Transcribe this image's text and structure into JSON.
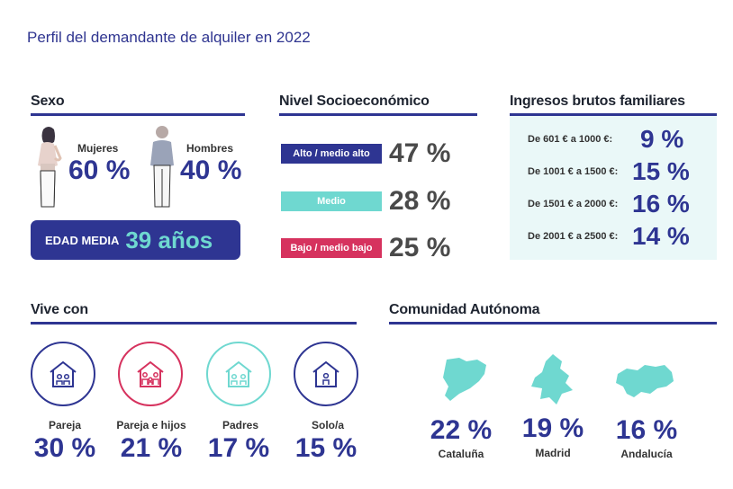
{
  "title": "Perfil del demandante de alquiler en 2022",
  "sexo": {
    "title": "Sexo",
    "mujeres_label": "Mujeres",
    "mujeres_value": "60 %",
    "hombres_label": "Hombres",
    "hombres_value": "40 %",
    "edad_label": "EDAD MEDIA",
    "edad_value": "39 años"
  },
  "nivel": {
    "title": "Nivel Socioeconómico",
    "items": [
      {
        "label": "Alto / medio alto",
        "value": "47 %",
        "color": "#2e3592"
      },
      {
        "label": "Medio",
        "value": "28 %",
        "color": "#6fd8d0"
      },
      {
        "label": "Bajo / medio bajo",
        "value": "25 %",
        "color": "#d6325e"
      }
    ]
  },
  "ingresos": {
    "title": "Ingresos brutos familiares",
    "items": [
      {
        "label": "De 601 € a 1000 €:",
        "value": "9 %"
      },
      {
        "label": "De 1001 € a 1500 €:",
        "value": "15 %"
      },
      {
        "label": "De 1501 € a 2000 €:",
        "value": "16 %"
      },
      {
        "label": "De 2001 € a 2500 €:",
        "value": "14 %"
      }
    ]
  },
  "vive": {
    "title": "Vive con",
    "items": [
      {
        "label": "Pareja",
        "value": "30 %",
        "color": "#2e3592",
        "icon": "couple-house-icon"
      },
      {
        "label": "Pareja e hijos",
        "value": "21 %",
        "color": "#d6325e",
        "icon": "family-house-icon"
      },
      {
        "label": "Padres",
        "value": "17 %",
        "color": "#6fd8d0",
        "icon": "parents-house-icon"
      },
      {
        "label": "Solo/a",
        "value": "15 %",
        "color": "#2e3592",
        "icon": "single-house-icon"
      }
    ]
  },
  "comunidad": {
    "title": "Comunidad Autónoma",
    "items": [
      {
        "value": "22 %",
        "label": "Cataluña",
        "icon": "cataluna-map-icon"
      },
      {
        "value": "19 %",
        "label": "Madrid",
        "icon": "madrid-map-icon"
      },
      {
        "value": "16 %",
        "label": "Andalucía",
        "icon": "andalucia-map-icon"
      }
    ],
    "map_color": "#6fd8d0"
  }
}
